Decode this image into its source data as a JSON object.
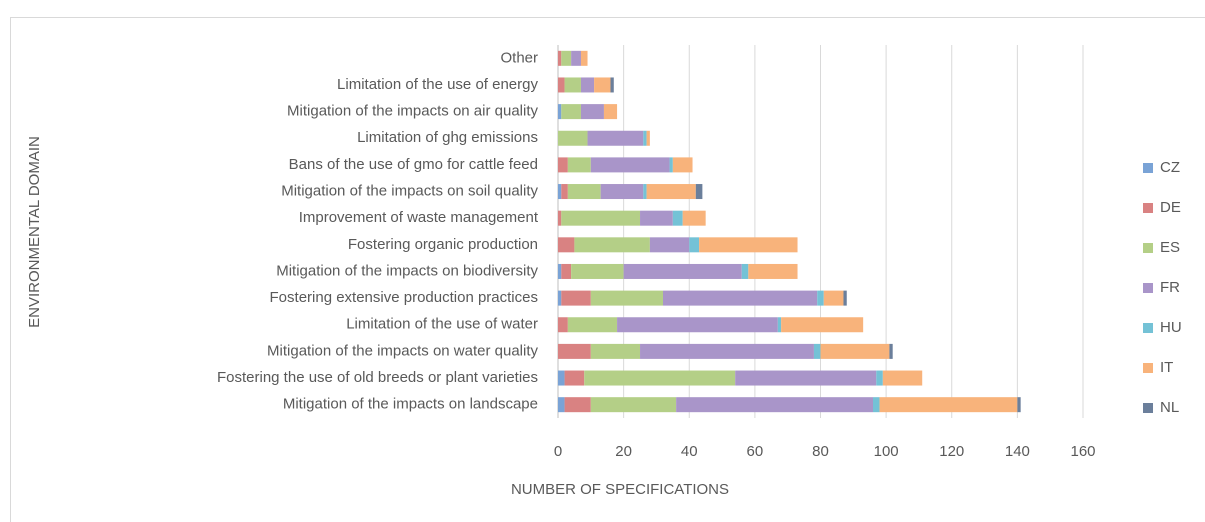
{
  "chart_data": {
    "type": "stacked_barh",
    "xlabel": "NUMBER OF SPECIFICATIONS",
    "ylabel": "ENVIRONMENTAL DOMAIN",
    "categories": [
      "Other",
      "Limitation of the use of energy",
      "Mitigation of the impacts on air quality",
      "Limitation of ghg emissions",
      "Bans of the use of gmo for cattle feed",
      "Mitigation of the impacts on soil quality",
      "Improvement of waste management",
      "Fostering organic production",
      "Mitigation of the impacts on biodiversity",
      "Fostering extensive production practices",
      "Limitation of the use of water",
      "Mitigation of the impacts on water quality",
      "Fostering the use of old breeds or plant varieties",
      "Mitigation of the impacts on landscape"
    ],
    "series": [
      {
        "name": "CZ",
        "color": "#7aa3d6",
        "values": [
          0,
          0,
          1,
          0,
          0,
          1,
          0,
          0,
          1,
          1,
          0,
          0,
          2,
          2
        ]
      },
      {
        "name": "DE",
        "color": "#d98282",
        "values": [
          1,
          2,
          0,
          0,
          3,
          2,
          1,
          5,
          3,
          9,
          3,
          10,
          6,
          8
        ]
      },
      {
        "name": "ES",
        "color": "#b4cf87",
        "values": [
          3,
          5,
          6,
          9,
          7,
          10,
          24,
          23,
          16,
          22,
          15,
          15,
          46,
          26
        ]
      },
      {
        "name": "FR",
        "color": "#a995c9",
        "values": [
          3,
          4,
          7,
          17,
          24,
          13,
          10,
          12,
          36,
          47,
          49,
          53,
          43,
          60
        ]
      },
      {
        "name": "HU",
        "color": "#74c2d6",
        "values": [
          0,
          0,
          0,
          1,
          1,
          1,
          3,
          3,
          2,
          2,
          1,
          2,
          2,
          2
        ]
      },
      {
        "name": "IT",
        "color": "#f8b37b",
        "values": [
          2,
          5,
          4,
          1,
          6,
          15,
          7,
          30,
          15,
          6,
          25,
          21,
          12,
          42
        ]
      },
      {
        "name": "NL",
        "color": "#6b7f9b",
        "values": [
          0,
          1,
          0,
          0,
          0,
          2,
          0,
          0,
          0,
          1,
          0,
          1,
          0,
          1
        ]
      }
    ],
    "xlim": [
      0,
      160
    ],
    "xticks": [
      0,
      20,
      40,
      60,
      80,
      100,
      120,
      140,
      160
    ],
    "grid": true,
    "legend": "right"
  }
}
